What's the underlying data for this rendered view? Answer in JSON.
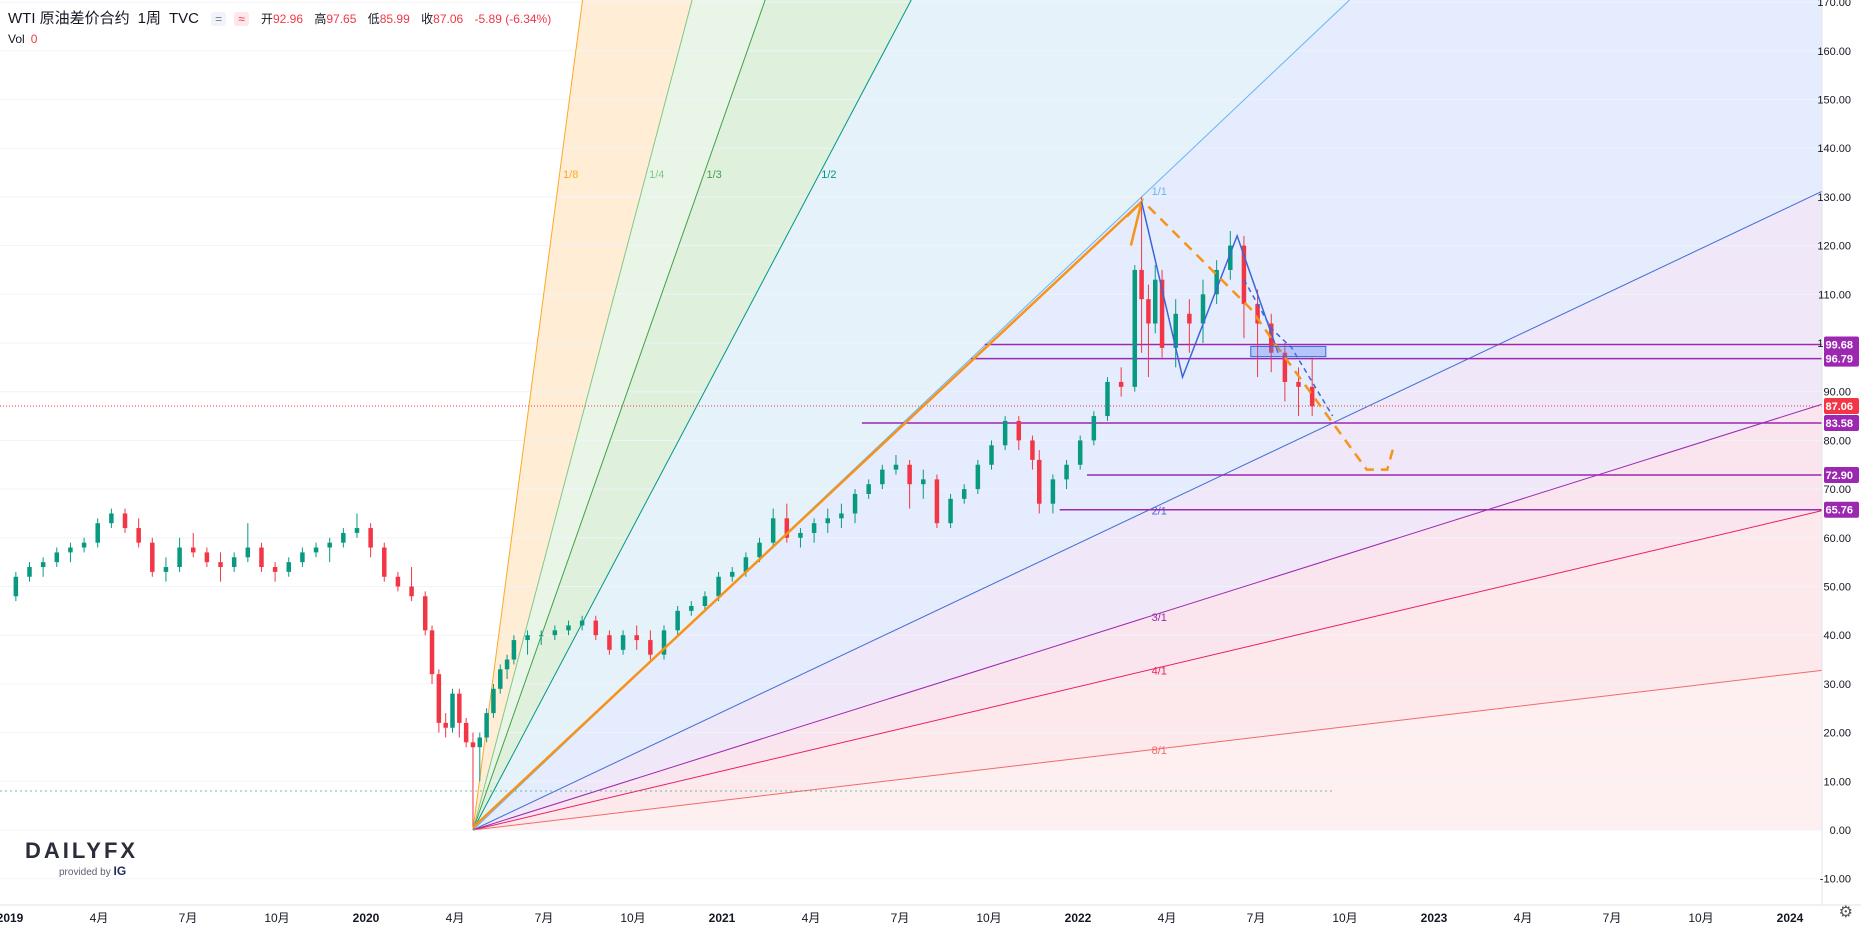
{
  "header": {
    "symbol": "WTI 原油差价合约",
    "interval": "1周",
    "source": "TVC",
    "badge_eq": "=",
    "badge_approx": "≈",
    "open_label": "开",
    "open": "92.96",
    "high_label": "高",
    "high": "97.65",
    "low_label": "低",
    "low": "85.99",
    "close_label": "收",
    "close": "87.06",
    "change": "-5.89 (-6.34%)",
    "vol_label": "Vol",
    "vol": "0"
  },
  "logo": {
    "name": "DAILYFX",
    "provided_by": "provided by",
    "brand": "IG"
  },
  "chart_data": {
    "type": "candlestick",
    "instrument": "WTI 原油差价合约",
    "interval": "1周",
    "y_axis": {
      "min": -10,
      "max": 170,
      "step": 10,
      "ticks": [
        "170.00",
        "160.00",
        "150.00",
        "140.00",
        "130.00",
        "120.00",
        "110.00",
        "100.00",
        "90.00",
        "80.00",
        "70.00",
        "60.00",
        "50.00",
        "40.00",
        "30.00",
        "20.00",
        "10.00",
        "0.00",
        "-10.00"
      ]
    },
    "x_axis": {
      "labels": [
        "2019",
        "4月",
        "7月",
        "10月",
        "2020",
        "4月",
        "7月",
        "10月",
        "2021",
        "4月",
        "7月",
        "10月",
        "2022",
        "4月",
        "7月",
        "10月",
        "2023",
        "4月",
        "7月",
        "10月",
        "2024"
      ]
    },
    "current_price": 87.06,
    "price_tags": [
      {
        "value": 99.68,
        "label": "99.68",
        "color": "#9c27b0"
      },
      {
        "value": 96.79,
        "label": "96.79",
        "color": "#9c27b0"
      },
      {
        "value": 87.06,
        "label": "87.06",
        "color": "#f23645"
      },
      {
        "value": 83.58,
        "label": "83.58",
        "color": "#9c27b0"
      },
      {
        "value": 72.9,
        "label": "72.90",
        "color": "#9c27b0"
      },
      {
        "value": 65.76,
        "label": "65.76",
        "color": "#9c27b0"
      }
    ],
    "gann_fan": {
      "origin": {
        "date": "2020-04-20",
        "price": 0
      },
      "anchor": {
        "date": "2022-03-07",
        "price": 130
      },
      "lines": [
        {
          "label": "1/8",
          "color": "#ffa726"
        },
        {
          "label": "1/4",
          "color": "#81c784"
        },
        {
          "label": "1/3",
          "color": "#43a047"
        },
        {
          "label": "1/2",
          "color": "#009688"
        },
        {
          "label": "1/1",
          "color": "#64b5f6"
        },
        {
          "label": "2/1",
          "color": "#3f6fd6"
        },
        {
          "label": "3/1",
          "color": "#9c27b0"
        },
        {
          "label": "4/1",
          "color": "#e91e63"
        },
        {
          "label": "8/1",
          "color": "#f06b6b"
        }
      ]
    },
    "candles": [
      [
        "2019-01-07",
        48,
        53,
        47,
        52
      ],
      [
        "2019-01-21",
        52,
        55,
        51,
        54
      ],
      [
        "2019-02-04",
        54,
        56,
        52,
        55
      ],
      [
        "2019-02-18",
        55,
        58,
        54,
        57
      ],
      [
        "2019-03-04",
        57,
        59,
        55,
        58
      ],
      [
        "2019-03-18",
        58,
        60,
        57,
        59
      ],
      [
        "2019-04-01",
        59,
        64,
        58,
        63
      ],
      [
        "2019-04-15",
        63,
        66,
        62,
        65
      ],
      [
        "2019-04-29",
        65,
        66,
        61,
        62
      ],
      [
        "2019-05-13",
        62,
        64,
        58,
        59
      ],
      [
        "2019-05-27",
        59,
        60,
        52,
        53
      ],
      [
        "2019-06-10",
        53,
        56,
        51,
        54
      ],
      [
        "2019-06-24",
        54,
        60,
        53,
        58
      ],
      [
        "2019-07-08",
        58,
        61,
        56,
        57
      ],
      [
        "2019-07-22",
        57,
        58,
        54,
        55
      ],
      [
        "2019-08-05",
        55,
        57,
        51,
        54
      ],
      [
        "2019-08-19",
        54,
        57,
        53,
        56
      ],
      [
        "2019-09-02",
        56,
        63,
        55,
        58
      ],
      [
        "2019-09-16",
        58,
        59,
        53,
        54
      ],
      [
        "2019-09-30",
        54,
        55,
        51,
        53
      ],
      [
        "2019-10-14",
        53,
        56,
        52,
        55
      ],
      [
        "2019-10-28",
        55,
        58,
        54,
        57
      ],
      [
        "2019-11-11",
        57,
        59,
        56,
        58
      ],
      [
        "2019-11-25",
        58,
        60,
        55,
        59
      ],
      [
        "2019-12-09",
        59,
        62,
        58,
        61
      ],
      [
        "2019-12-23",
        61,
        65,
        60,
        62
      ],
      [
        "2020-01-06",
        62,
        63,
        56,
        58
      ],
      [
        "2020-01-20",
        58,
        59,
        51,
        52
      ],
      [
        "2020-02-03",
        52,
        53,
        49,
        50
      ],
      [
        "2020-02-17",
        50,
        54,
        47,
        48
      ],
      [
        "2020-03-02",
        48,
        49,
        40,
        41
      ],
      [
        "2020-03-09",
        41,
        42,
        30,
        32
      ],
      [
        "2020-03-16",
        32,
        33,
        20,
        22
      ],
      [
        "2020-03-23",
        22,
        24,
        19,
        21
      ],
      [
        "2020-03-30",
        21,
        29,
        20,
        28
      ],
      [
        "2020-04-06",
        28,
        29,
        19,
        22
      ],
      [
        "2020-04-13",
        22,
        23,
        17,
        18
      ],
      [
        "2020-04-20",
        18,
        20,
        0.5,
        17
      ],
      [
        "2020-04-27",
        17,
        20,
        10,
        19
      ],
      [
        "2020-05-04",
        19,
        25,
        18,
        24
      ],
      [
        "2020-05-11",
        24,
        30,
        23,
        29
      ],
      [
        "2020-05-18",
        29,
        34,
        28,
        33
      ],
      [
        "2020-05-25",
        33,
        36,
        31,
        35
      ],
      [
        "2020-06-01",
        35,
        40,
        34,
        39
      ],
      [
        "2020-06-15",
        39,
        41,
        36,
        40
      ],
      [
        "2020-06-29",
        40,
        41,
        38,
        40
      ],
      [
        "2020-07-13",
        40,
        42,
        39,
        41
      ],
      [
        "2020-07-27",
        41,
        43,
        40,
        42
      ],
      [
        "2020-08-10",
        42,
        44,
        41,
        43
      ],
      [
        "2020-08-24",
        43,
        44,
        39,
        40
      ],
      [
        "2020-09-07",
        40,
        41,
        36,
        37
      ],
      [
        "2020-09-21",
        37,
        41,
        36,
        40
      ],
      [
        "2020-10-05",
        40,
        42,
        37,
        39
      ],
      [
        "2020-10-19",
        39,
        41,
        35,
        36
      ],
      [
        "2020-11-02",
        36,
        42,
        35,
        41
      ],
      [
        "2020-11-16",
        41,
        46,
        40,
        45
      ],
      [
        "2020-11-30",
        45,
        47,
        44,
        46
      ],
      [
        "2020-12-14",
        46,
        49,
        45,
        48
      ],
      [
        "2020-12-28",
        48,
        53,
        47,
        52
      ],
      [
        "2021-01-11",
        52,
        54,
        51,
        53
      ],
      [
        "2021-01-25",
        53,
        57,
        52,
        56
      ],
      [
        "2021-02-08",
        56,
        60,
        55,
        59
      ],
      [
        "2021-02-22",
        59,
        66,
        58,
        64
      ],
      [
        "2021-03-08",
        64,
        67,
        59,
        60
      ],
      [
        "2021-03-22",
        60,
        62,
        58,
        61
      ],
      [
        "2021-04-05",
        61,
        64,
        59,
        63
      ],
      [
        "2021-04-19",
        63,
        66,
        61,
        64
      ],
      [
        "2021-05-03",
        64,
        67,
        62,
        65
      ],
      [
        "2021-05-17",
        65,
        70,
        63,
        69
      ],
      [
        "2021-05-31",
        69,
        72,
        68,
        71
      ],
      [
        "2021-06-14",
        71,
        75,
        70,
        74
      ],
      [
        "2021-06-28",
        74,
        77,
        73,
        75
      ],
      [
        "2021-07-12",
        75,
        76,
        66,
        71
      ],
      [
        "2021-07-26",
        71,
        74,
        68,
        72
      ],
      [
        "2021-08-09",
        72,
        73,
        62,
        63
      ],
      [
        "2021-08-23",
        63,
        69,
        62,
        68
      ],
      [
        "2021-09-06",
        68,
        71,
        67,
        70
      ],
      [
        "2021-09-20",
        70,
        76,
        69,
        75
      ],
      [
        "2021-10-04",
        75,
        80,
        74,
        79
      ],
      [
        "2021-10-18",
        79,
        85,
        78,
        84
      ],
      [
        "2021-11-01",
        84,
        85,
        78,
        80
      ],
      [
        "2021-11-15",
        80,
        81,
        74,
        76
      ],
      [
        "2021-11-22",
        76,
        78,
        65,
        67
      ],
      [
        "2021-12-06",
        67,
        73,
        65,
        72
      ],
      [
        "2021-12-20",
        72,
        76,
        70,
        75
      ],
      [
        "2022-01-03",
        75,
        81,
        74,
        80
      ],
      [
        "2022-01-17",
        80,
        86,
        79,
        85
      ],
      [
        "2022-01-31",
        85,
        93,
        84,
        92
      ],
      [
        "2022-02-14",
        92,
        95,
        89,
        91
      ],
      [
        "2022-02-28",
        91,
        116,
        90,
        115
      ],
      [
        "2022-03-07",
        115,
        130,
        98,
        109
      ],
      [
        "2022-03-14",
        109,
        112,
        93,
        104
      ],
      [
        "2022-03-21",
        104,
        116,
        102,
        113
      ],
      [
        "2022-03-28",
        113,
        115,
        97,
        99
      ],
      [
        "2022-04-11",
        99,
        109,
        95,
        106
      ],
      [
        "2022-04-25",
        106,
        109,
        98,
        104
      ],
      [
        "2022-05-09",
        104,
        113,
        100,
        110
      ],
      [
        "2022-05-23",
        110,
        117,
        108,
        115
      ],
      [
        "2022-06-06",
        115,
        123,
        113,
        120
      ],
      [
        "2022-06-20",
        120,
        122,
        101,
        108
      ],
      [
        "2022-07-04",
        108,
        111,
        93,
        104
      ],
      [
        "2022-07-18",
        104,
        106,
        94,
        98
      ],
      [
        "2022-08-01",
        98,
        100,
        88,
        92
      ],
      [
        "2022-08-15",
        92,
        95,
        85,
        91
      ],
      [
        "2022-08-29",
        91,
        97,
        85,
        87
      ]
    ]
  }
}
